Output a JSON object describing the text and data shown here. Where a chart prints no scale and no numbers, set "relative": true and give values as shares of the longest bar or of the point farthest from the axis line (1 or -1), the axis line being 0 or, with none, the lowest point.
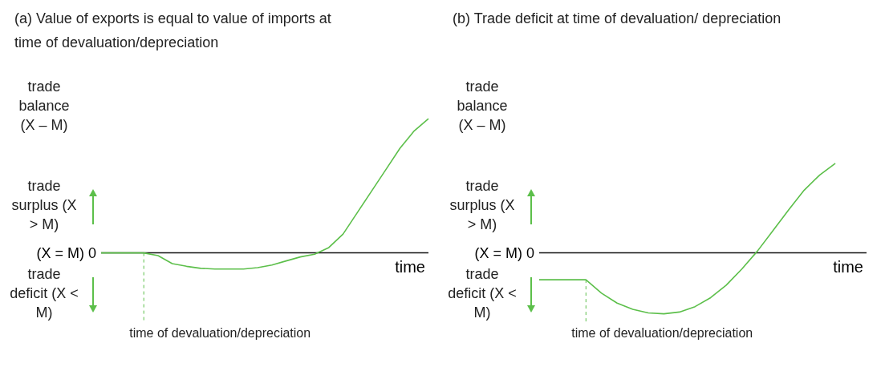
{
  "chart_data": [
    {
      "type": "line",
      "relative": true,
      "title": "(a)  Value of exports is equal to value of imports at time of devaluation/depreciation",
      "ylabel": "trade balance (X – M)",
      "xlabel": "time",
      "annotations": [
        "trade surplus (X > M)",
        "(X = M) 0",
        "trade deficit (X < M)",
        "time of devaluation/depreciation"
      ],
      "categories": [
        null,
        null,
        null,
        null,
        null,
        null,
        null,
        null,
        null,
        null,
        null,
        null,
        null,
        null,
        null,
        null,
        null,
        null,
        null,
        null,
        null,
        null,
        null,
        null
      ],
      "series": [
        {
          "color": "#5cbf4a",
          "values": [
            0,
            0,
            0,
            0,
            -0.02,
            -0.08,
            -0.1,
            -0.115,
            -0.12,
            -0.12,
            -0.12,
            -0.11,
            -0.09,
            -0.06,
            -0.03,
            -0.01,
            0.04,
            0.14,
            0.3,
            0.46,
            0.62,
            0.78,
            0.91,
            1
          ]
        }
      ]
    },
    {
      "type": "line",
      "relative": true,
      "title": "(b)  Trade deficit at time of devaluation/ depreciation",
      "ylabel": "trade balance (X – M)",
      "xlabel": "time",
      "annotations": [
        "trade surplus (X > M)",
        "(X = M) 0",
        "trade deficit (X < M)",
        "time of devaluation/depreciation"
      ],
      "categories": [
        null,
        null,
        null,
        null,
        null,
        null,
        null,
        null,
        null,
        null,
        null,
        null,
        null,
        null,
        null,
        null,
        null,
        null,
        null,
        null,
        null,
        null
      ],
      "series": [
        {
          "color": "#5cbf4a",
          "values": [
            -0.3,
            -0.3,
            -0.3,
            -0.3,
            -0.45,
            -0.56,
            -0.63,
            -0.67,
            -0.68,
            -0.66,
            -0.6,
            -0.5,
            -0.36,
            -0.18,
            0.02,
            0.25,
            0.48,
            0.7,
            0.87,
            1,
            null,
            null
          ]
        }
      ]
    }
  ]
}
